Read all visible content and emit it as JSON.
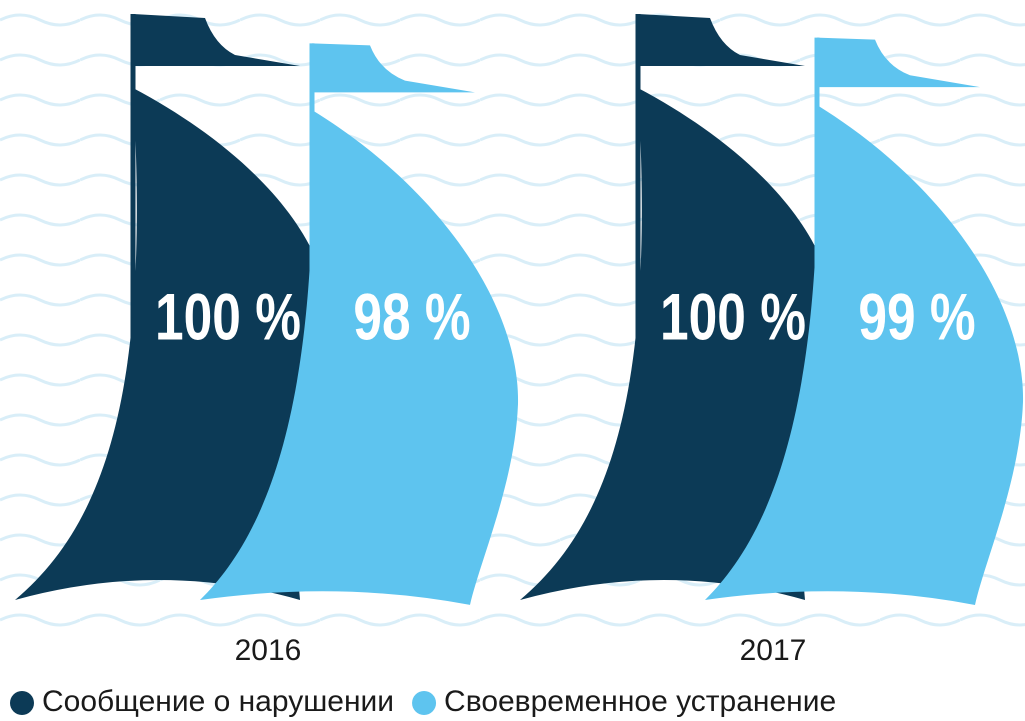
{
  "chart_data": {
    "type": "sail",
    "categories": [
      "2016",
      "2017"
    ],
    "series": [
      {
        "name": "Сообщение о нарушении",
        "color": "#0c3a56",
        "values": [
          100,
          100
        ],
        "value_labels": [
          "100 %",
          "100 %"
        ]
      },
      {
        "name": "Своевременное устранение",
        "color": "#5ec4ef",
        "values": [
          98,
          99
        ],
        "value_labels": [
          "98 %",
          "99 %"
        ]
      }
    ]
  }
}
